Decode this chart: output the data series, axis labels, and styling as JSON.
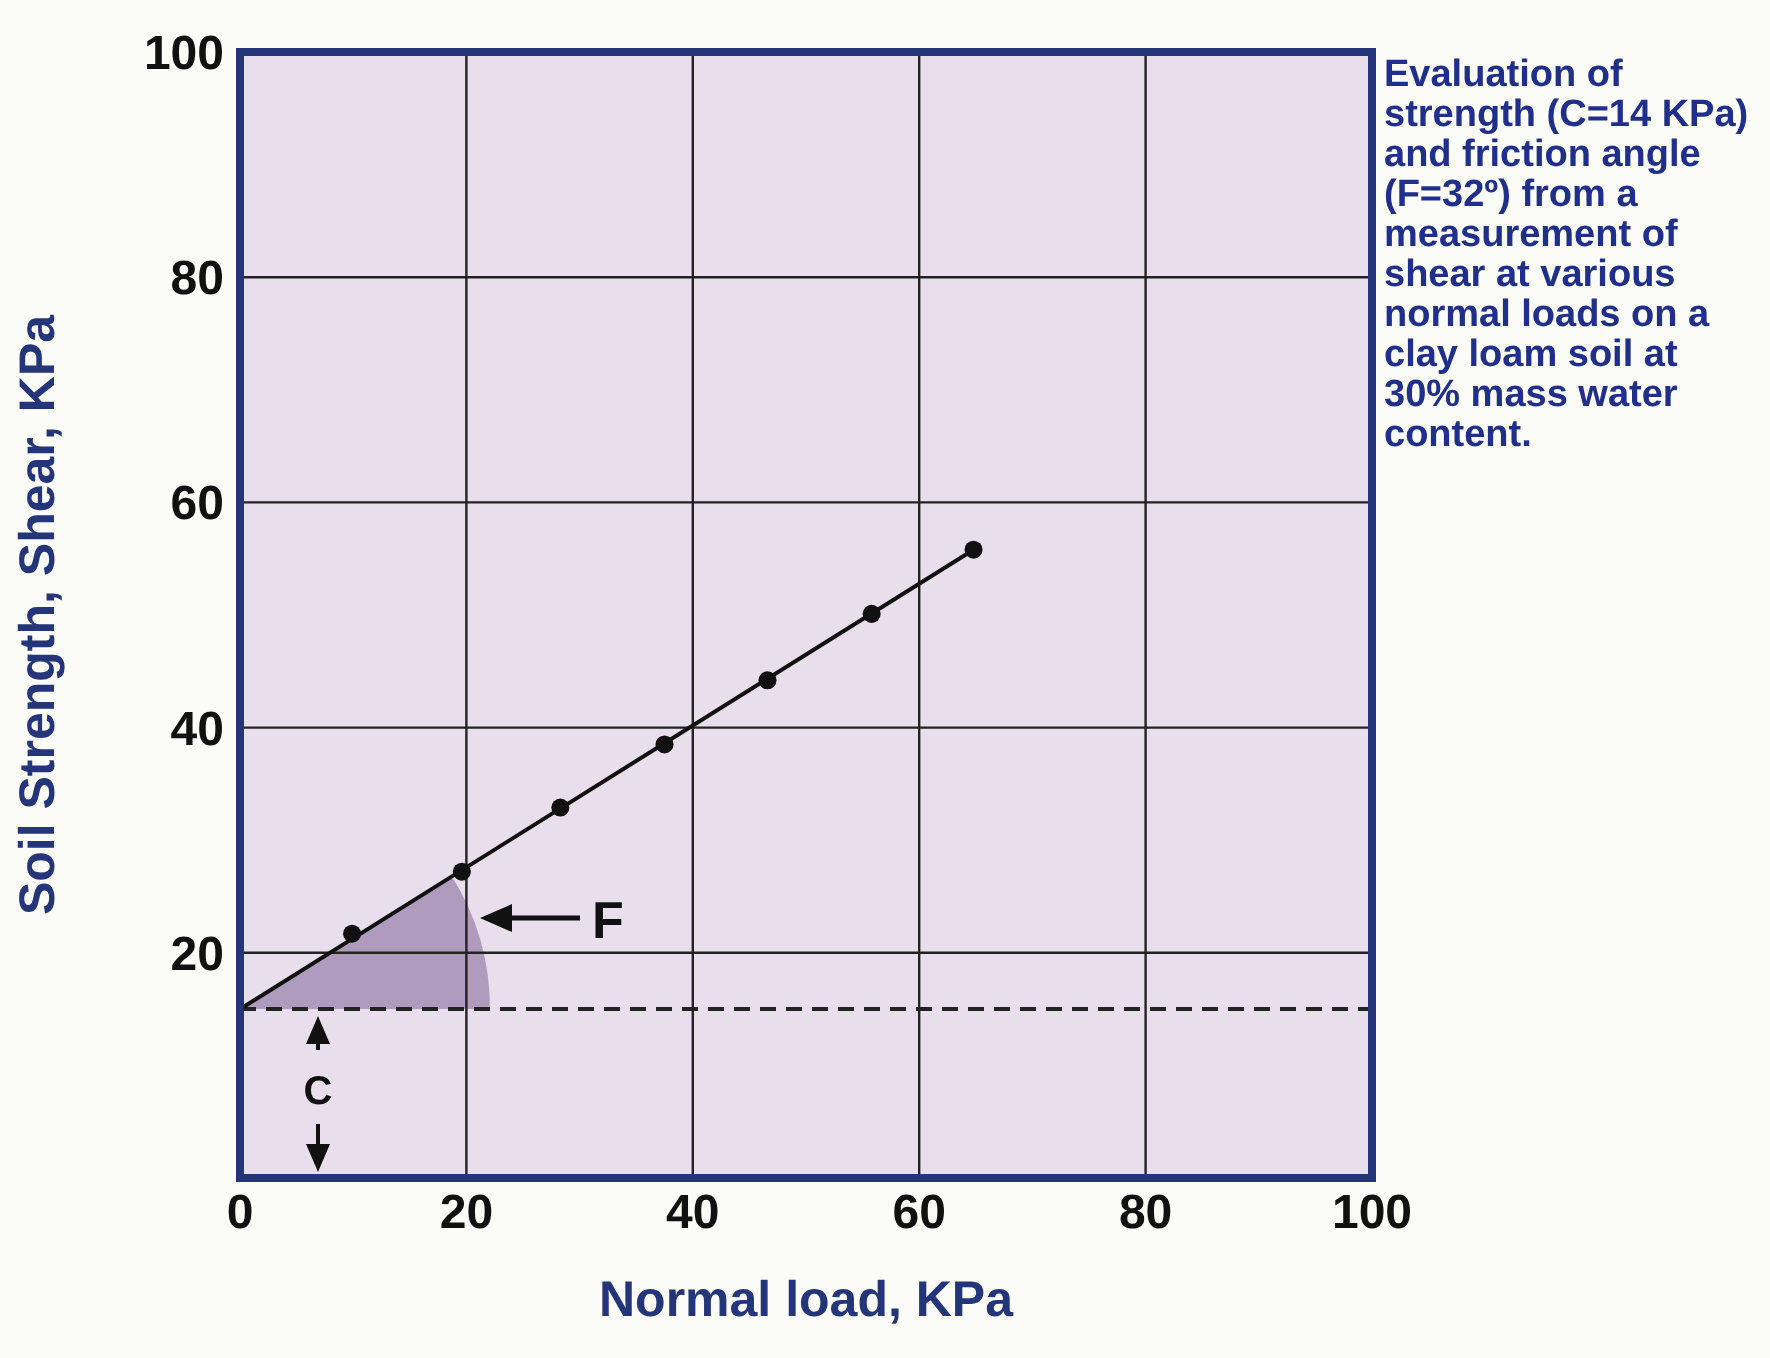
{
  "chart_data": {
    "type": "scatter",
    "xlabel": "Normal load, KPa",
    "ylabel": "Soil Strength, Shear, KPa",
    "xlim": [
      0,
      100
    ],
    "xticks": [
      0,
      20,
      40,
      60,
      80,
      100
    ],
    "ylim": [
      0,
      100
    ],
    "yticks": [
      {
        "value": 0,
        "label": null
      },
      20,
      40,
      60,
      80,
      100
    ],
    "grid": true,
    "marker": "circle",
    "series": [
      {
        "color": "#111111",
        "x": [
          9.9,
          19.6,
          28.3,
          37.5,
          46.6,
          55.8,
          64.8
        ],
        "values": [
          21.7,
          27.2,
          32.9,
          38.5,
          44.2,
          50.1,
          55.8
        ]
      },
      {
        "type": "line",
        "color": "#111111",
        "marker": "none",
        "x": [
          0,
          64.8
        ],
        "values": [
          15,
          55.8
        ]
      }
    ],
    "ref_lines": [
      {
        "axis": "y",
        "value": 15,
        "color": "#222222",
        "line_style": "dashed"
      }
    ],
    "annotations": [
      "F",
      "C",
      "Evaluation of strength (C=14 KPa) and friction angle (F=32º) from a measurement of shear at various normal loads on a clay loam soil at 30% mass water content."
    ]
  }
}
